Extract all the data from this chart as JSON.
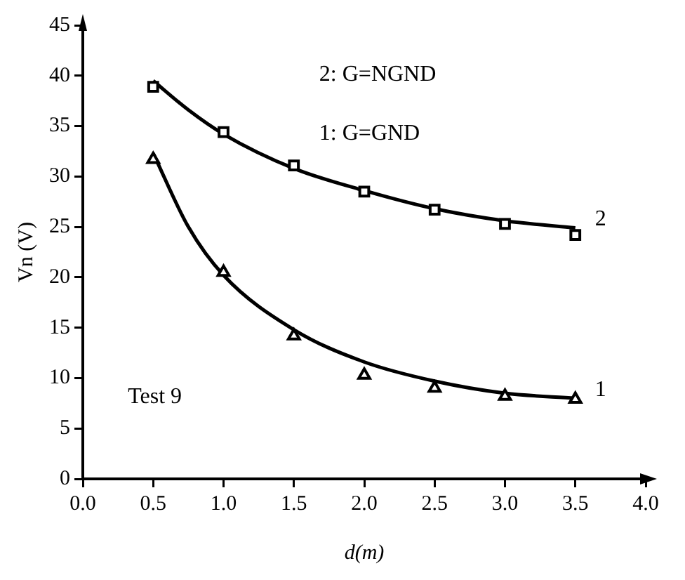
{
  "chart_data": {
    "type": "scatter",
    "xlabel": "d(m)",
    "ylabel": "Vn (V)",
    "xlim": [
      0,
      4
    ],
    "xticks": [
      {
        "value": 0,
        "label": "0.0"
      },
      0.5,
      {
        "value": 1,
        "label": "1.0"
      },
      1.5,
      {
        "value": 2,
        "label": "2.0"
      },
      2.5,
      {
        "value": 3,
        "label": "3.0"
      },
      3.5,
      {
        "value": 4,
        "label": "4.0"
      }
    ],
    "ylim": [
      0,
      45
    ],
    "yticks": [
      0,
      5,
      10,
      15,
      20,
      25,
      30,
      35,
      40,
      45
    ],
    "grid": false,
    "legend": false,
    "annotations": [
      "2: G=NGND",
      "1: G=GND",
      "Test 9"
    ],
    "series": [
      {
        "color": "#000000",
        "marker": "square",
        "x": [
          0.5,
          1,
          1.5,
          2,
          2.5,
          3,
          3.5
        ],
        "values": [
          38.9,
          34.4,
          31.1,
          28.5,
          26.7,
          25.3,
          24.2
        ]
      },
      {
        "color": "#000000",
        "marker": "triangle",
        "x": [
          0.5,
          1,
          1.5,
          2,
          2.5,
          3,
          3.5
        ],
        "values": [
          31.7,
          20.5,
          14.2,
          10.3,
          9.0,
          8.2,
          7.9
        ]
      },
      {
        "type": "line",
        "name": "2",
        "color": "#000000",
        "marker": "none",
        "x": [
          0.5,
          0.75,
          1,
          1.5,
          2,
          2.5,
          3,
          3.5
        ],
        "values": [
          39.5,
          36.6,
          34.2,
          30.8,
          28.6,
          26.8,
          25.6,
          24.9
        ]
      },
      {
        "type": "line",
        "name": "1",
        "color": "#000000",
        "marker": "none",
        "x": [
          0.5,
          0.75,
          1,
          1.5,
          2,
          2.5,
          3,
          3.5
        ],
        "values": [
          32.3,
          25.0,
          20.2,
          14.8,
          11.6,
          9.7,
          8.5,
          8.0
        ]
      }
    ]
  }
}
